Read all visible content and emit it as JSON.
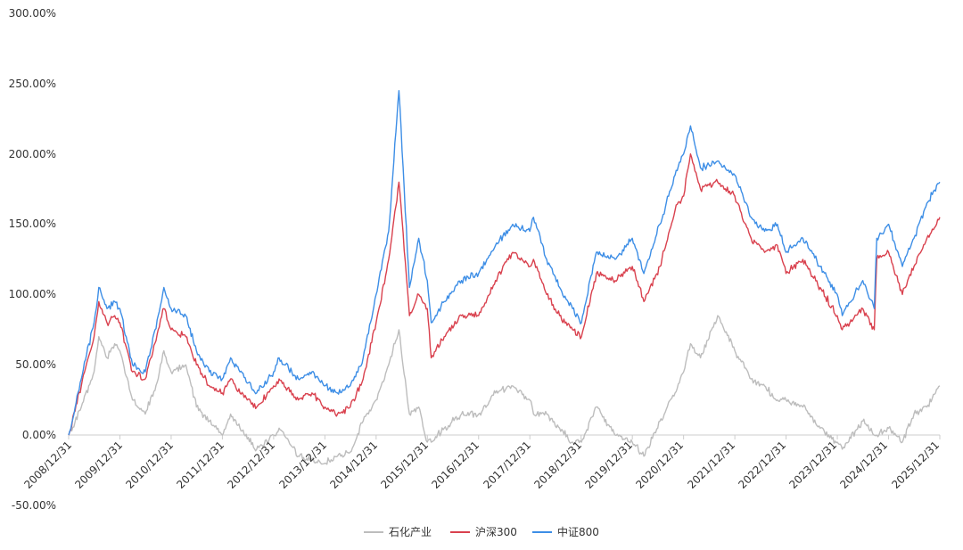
{
  "chart_data": {
    "type": "line",
    "title": "",
    "xlabel": "",
    "ylabel": "",
    "ylim": [
      -50,
      300
    ],
    "y_ticks": [
      "300.00%",
      "250.00%",
      "200.00%",
      "150.00%",
      "100.00%",
      "50.00%",
      "0.00%",
      "-50.00%"
    ],
    "y_tick_values": [
      300,
      250,
      200,
      150,
      100,
      50,
      0,
      -50
    ],
    "x_ticks": [
      "2008/12/31",
      "2009/12/31",
      "2010/12/31",
      "2011/12/31",
      "2012/12/31",
      "2013/12/31",
      "2014/12/31",
      "2015/12/31",
      "2016/12/31",
      "2017/12/31",
      "2018/12/31",
      "2019/12/31",
      "2020/12/31",
      "2021/12/31",
      "2022/12/31",
      "2023/12/31",
      "2024/12/31",
      "2025/12/31"
    ],
    "grid": false,
    "legend_position": "bottom-center",
    "x": [
      "2008-12-31",
      "2009-03-31",
      "2009-06-30",
      "2009-08-03",
      "2009-09-30",
      "2009-11-24",
      "2009-12-31",
      "2010-03-31",
      "2010-06-30",
      "2010-09-30",
      "2010-11-10",
      "2010-12-31",
      "2011-04-15",
      "2011-06-30",
      "2011-09-30",
      "2011-12-31",
      "2012-02-28",
      "2012-05-05",
      "2012-09-01",
      "2012-12-31",
      "2013-02-08",
      "2013-06-25",
      "2013-09-30",
      "2013-12-31",
      "2014-03-31",
      "2014-06-30",
      "2014-09-30",
      "2014-12-31",
      "2015-03-31",
      "2015-06-12",
      "2015-08-26",
      "2015-10-31",
      "2015-12-31",
      "2016-01-28",
      "2016-04-30",
      "2016-08-31",
      "2016-12-31",
      "2017-04-30",
      "2017-08-31",
      "2017-12-31",
      "2018-01-26",
      "2018-04-30",
      "2018-07-31",
      "2018-10-31",
      "2019-01-03",
      "2019-04-19",
      "2019-08-31",
      "2019-12-31",
      "2020-03-23",
      "2020-07-15",
      "2020-10-31",
      "2020-12-31",
      "2021-02-18",
      "2021-04-30",
      "2021-08-31",
      "2021-12-31",
      "2022-04-26",
      "2022-07-31",
      "2022-10-31",
      "2022-12-31",
      "2023-04-30",
      "2023-08-31",
      "2023-12-31",
      "2024-02-05",
      "2024-06-30",
      "2024-09-20",
      "2024-10-08",
      "2024-12-31",
      "2025-04-08",
      "2025-06-30",
      "2025-09-30",
      "2025-12-31"
    ],
    "series": [
      {
        "name": "石化产业",
        "color": "#bdbdbd",
        "values": [
          0,
          20,
          45,
          70,
          55,
          65,
          60,
          25,
          15,
          40,
          60,
          45,
          50,
          20,
          10,
          0,
          15,
          5,
          -10,
          0,
          5,
          -15,
          -18,
          -20,
          -15,
          -12,
          10,
          25,
          50,
          75,
          15,
          20,
          -5,
          -5,
          5,
          15,
          15,
          30,
          35,
          25,
          15,
          15,
          5,
          -5,
          -5,
          20,
          0,
          -5,
          -15,
          10,
          30,
          45,
          65,
          55,
          85,
          60,
          40,
          35,
          25,
          25,
          20,
          5,
          -5,
          -10,
          10,
          0,
          0,
          5,
          -5,
          15,
          20,
          35
        ]
      },
      {
        "name": "沪深300",
        "color": "#d9414e",
        "values": [
          0,
          35,
          70,
          95,
          80,
          85,
          80,
          45,
          40,
          75,
          90,
          75,
          70,
          50,
          35,
          30,
          40,
          30,
          20,
          35,
          40,
          25,
          30,
          20,
          15,
          20,
          40,
          80,
          125,
          180,
          85,
          100,
          90,
          55,
          70,
          85,
          85,
          110,
          130,
          120,
          125,
          100,
          85,
          75,
          70,
          115,
          110,
          120,
          95,
          120,
          160,
          170,
          200,
          175,
          180,
          170,
          140,
          130,
          135,
          115,
          125,
          105,
          85,
          75,
          90,
          75,
          125,
          130,
          100,
          120,
          140,
          155
        ]
      },
      {
        "name": "中证800",
        "color": "#3d8ee6",
        "values": [
          0,
          40,
          80,
          105,
          90,
          95,
          90,
          50,
          45,
          85,
          105,
          90,
          85,
          60,
          45,
          40,
          55,
          45,
          30,
          45,
          55,
          40,
          45,
          35,
          30,
          35,
          55,
          100,
          145,
          245,
          105,
          140,
          110,
          80,
          95,
          110,
          115,
          135,
          150,
          145,
          155,
          125,
          105,
          90,
          80,
          130,
          125,
          140,
          115,
          150,
          185,
          200,
          220,
          190,
          195,
          185,
          155,
          145,
          150,
          130,
          140,
          120,
          100,
          85,
          110,
          90,
          140,
          150,
          120,
          140,
          165,
          180
        ]
      }
    ]
  }
}
